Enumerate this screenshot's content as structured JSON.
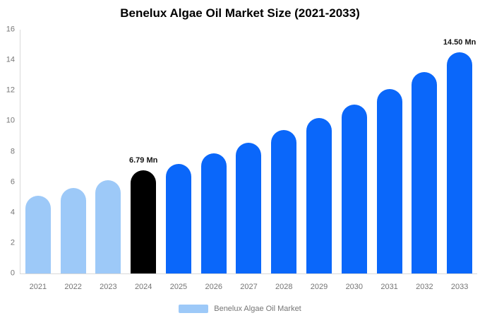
{
  "chart_data": {
    "type": "bar",
    "title": "Benelux Algae Oil Market Size (2021-2033)",
    "categories": [
      "2021",
      "2022",
      "2023",
      "2024",
      "2025",
      "2026",
      "2027",
      "2028",
      "2029",
      "2030",
      "2031",
      "2032",
      "2033"
    ],
    "series": [
      {
        "name": "Benelux Algae Oil Market",
        "values": [
          5.1,
          5.6,
          6.1,
          6.79,
          7.2,
          7.9,
          8.6,
          9.4,
          10.2,
          11.1,
          12.1,
          13.2,
          14.5
        ]
      }
    ],
    "point_segments": [
      "past",
      "past",
      "past",
      "current",
      "forecast",
      "forecast",
      "forecast",
      "forecast",
      "forecast",
      "forecast",
      "forecast",
      "forecast",
      "forecast"
    ],
    "data_labels": {
      "2024": "6.79 Mn",
      "2033": "14.50 Mn"
    },
    "xlabel": "",
    "ylabel": "",
    "ylim": [
      0,
      16
    ],
    "yticks": [
      0,
      2,
      4,
      6,
      8,
      10,
      12,
      14,
      16
    ],
    "grid": false,
    "colors": {
      "past": "#9dc9f8",
      "current": "#000000",
      "forecast": "#0a67fa"
    },
    "axis_color": "#d9d9d9",
    "tick_label_color": "#757575",
    "data_label_color": "#141414",
    "legend": {
      "position": "bottom",
      "label": "Benelux Algae Oil Market",
      "swatch_color": "#9dc9f8"
    }
  }
}
